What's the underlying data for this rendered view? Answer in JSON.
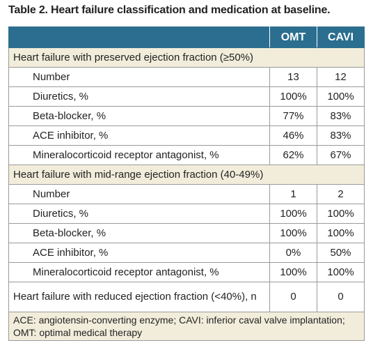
{
  "title": "Table 2. Heart failure classification and medication at baseline.",
  "table": {
    "columns": [
      "OMT",
      "CAVI"
    ],
    "sections": [
      {
        "label": "Heart failure with preserved ejection fraction (≥50%)",
        "rows": [
          [
            "Number",
            "13",
            "12"
          ],
          [
            "Diuretics, %",
            "100%",
            "100%"
          ],
          [
            "Beta-blocker, %",
            "77%",
            "83%"
          ],
          [
            "ACE inhibitor, %",
            "46%",
            "83%"
          ],
          [
            "Mineralocorticoid receptor antagonist, %",
            "62%",
            "67%"
          ]
        ]
      },
      {
        "label": "Heart failure with mid-range ejection fraction (40-49%)",
        "rows": [
          [
            "Number",
            "1",
            "2"
          ],
          [
            "Diuretics, %",
            "100%",
            "100%"
          ],
          [
            "Beta-blocker, %",
            "100%",
            "100%"
          ],
          [
            "ACE inhibitor, %",
            "0%",
            "50%"
          ],
          [
            "Mineralocorticoid receptor antagonist, %",
            "100%",
            "100%"
          ]
        ]
      }
    ],
    "final_row": [
      "Heart failure with reduced ejection fraction (<40%), n",
      "0",
      "0"
    ],
    "footnote": "ACE: angiotensin-converting enzyme; CAVI: inferior caval valve implantation; OMT: optimal medical therapy"
  }
}
